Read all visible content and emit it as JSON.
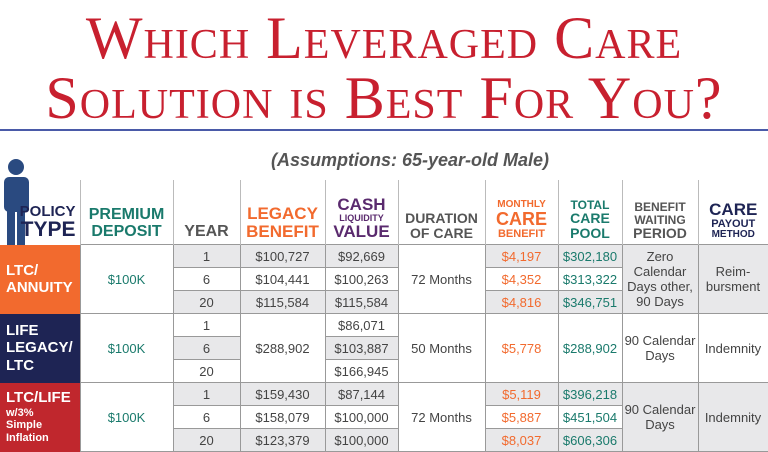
{
  "title": {
    "line1": "Which Leveraged Care",
    "line2": "Solution is Best For You?"
  },
  "subtitle": "(Assumptions: 65-year-old Male)",
  "headers": {
    "policy_a": "POLICY",
    "policy_b": "TYPE",
    "premium_a": "PREMIUM",
    "premium_b": "DEPOSIT",
    "year": "YEAR",
    "legacy_a": "LEGACY",
    "legacy_b": "BENEFIT",
    "cash_a": "CASH",
    "cash_b": "LIQUIDITY",
    "cash_c": "VALUE",
    "duration_a": "DURATION",
    "duration_b": "OF CARE",
    "monthly_a": "MONTHLY",
    "monthly_b": "CARE",
    "monthly_c": "BENEFIT",
    "total_a": "TOTAL",
    "total_b": "CARE",
    "total_c": "POOL",
    "wait_a": "BENEFIT",
    "wait_b": "WAITING",
    "wait_c": "PERIOD",
    "payout_a": "CARE",
    "payout_b": "PAYOUT",
    "payout_c": "METHOD"
  },
  "colors": {
    "title": "#c8202f",
    "ltc_annuity": "#f26a2e",
    "life_legacy": "#1e2454",
    "ltc_life": "#c0272d"
  },
  "policies": [
    {
      "type_a": "LTC/",
      "type_b": "ANNUITY",
      "premium": "$100K",
      "duration": "72 Months",
      "waiting": "Zero Calendar Days other, 90 Days",
      "payout": "Reim-bursment",
      "rows": [
        {
          "year": "1",
          "legacy": "$100,727",
          "cash": "$92,669",
          "monthly": "$4,197",
          "pool": "$302,180"
        },
        {
          "year": "6",
          "legacy": "$104,441",
          "cash": "$100,263",
          "monthly": "$4,352",
          "pool": "$313,322"
        },
        {
          "year": "20",
          "legacy": "$115,584",
          "cash": "$115,584",
          "monthly": "$4,816",
          "pool": "$346,751"
        }
      ]
    },
    {
      "type_a": "LIFE",
      "type_b": "LEGACY/",
      "type_c": "LTC",
      "premium": "$100K",
      "legacy": "$288,902",
      "duration": "50 Months",
      "monthly": "$5,778",
      "pool": "$288,902",
      "waiting": "90 Calendar Days",
      "payout": "Indemnity",
      "rows": [
        {
          "year": "1",
          "cash": "$86,071"
        },
        {
          "year": "6",
          "cash": "$103,887"
        },
        {
          "year": "20",
          "cash": "$166,945"
        }
      ]
    },
    {
      "type_a": "LTC/LIFE",
      "type_b": "w/3%",
      "type_c": "Simple",
      "type_d": "Inflation",
      "premium": "$100K",
      "duration": "72 Months",
      "waiting": "90 Calendar Days",
      "payout": "Indemnity",
      "rows": [
        {
          "year": "1",
          "legacy": "$159,430",
          "cash": "$87,144",
          "monthly": "$5,119",
          "pool": "$396,218"
        },
        {
          "year": "6",
          "legacy": "$158,079",
          "cash": "$100,000",
          "monthly": "$5,887",
          "pool": "$451,504"
        },
        {
          "year": "20",
          "legacy": "$123,379",
          "cash": "$100,000",
          "monthly": "$8,037",
          "pool": "$606,306"
        }
      ]
    }
  ]
}
